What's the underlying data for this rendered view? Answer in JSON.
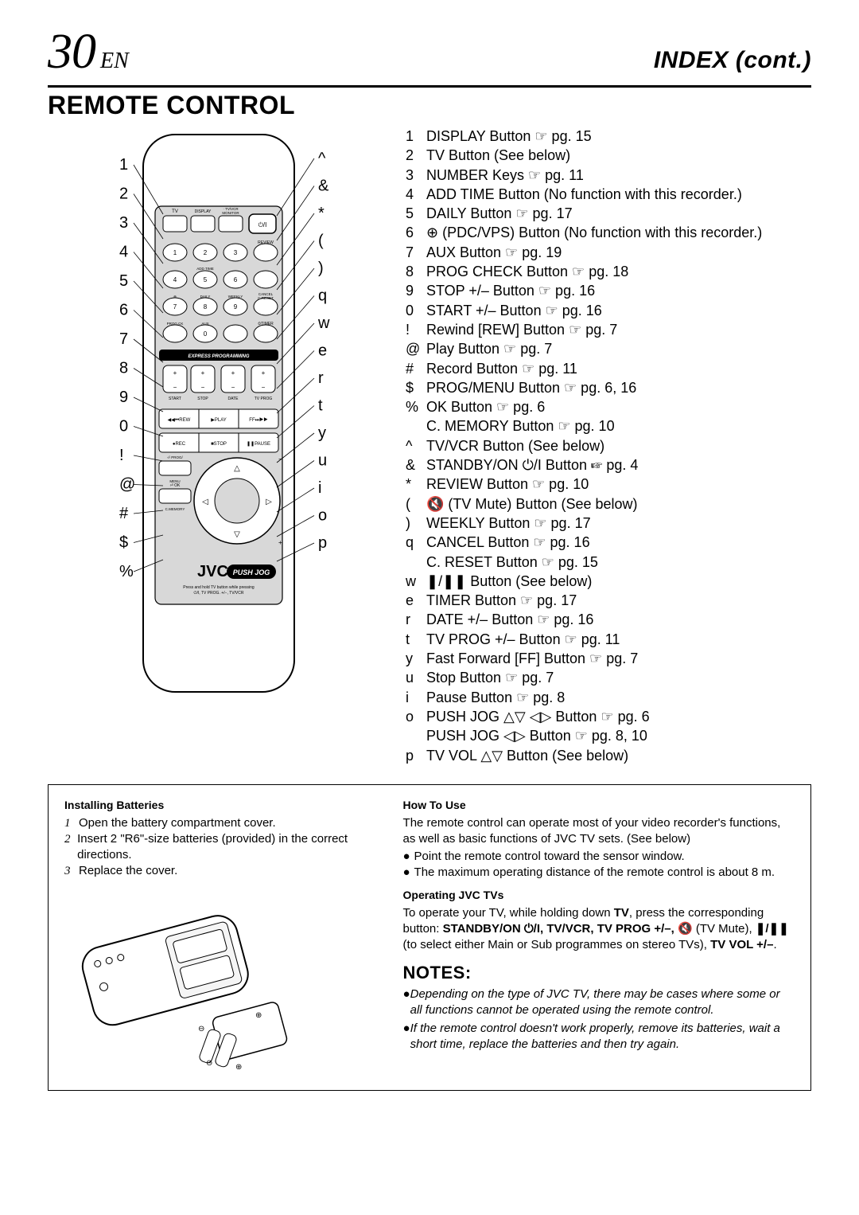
{
  "header": {
    "page_number": "30",
    "lang": "EN",
    "index_title": "INDEX (cont.)"
  },
  "section_title": "REMOTE CONTROL",
  "remote": {
    "left_callouts": [
      "1",
      "2",
      "3",
      "4",
      "5",
      "6",
      "7",
      "8",
      "9",
      "0",
      "!",
      "@",
      "#",
      "$",
      "%"
    ],
    "right_callouts": [
      "^",
      "&",
      "*",
      "(",
      ")",
      "q",
      "w",
      "e",
      "r",
      "t",
      "y",
      "u",
      "i",
      "o",
      "p"
    ],
    "brand": "JVC",
    "push_jog": "PUSH JOG",
    "express": "EXPRESS PROGRAMMING",
    "hint_line1": "Press and hold TV button while pressing",
    "hint_line2": "⏻/I, TV PROG. +/−, TV/VCR",
    "labels": {
      "tv": "TV",
      "display": "DISPLAY",
      "tvvcr": "· TV/VCR\nMONITOR",
      "review": "REVIEW",
      "addtime": "ADD TIME",
      "daily": "DAILY",
      "weekly": "WEEKLY",
      "cancel": "CANCEL\nC.RESET",
      "aux": "AUX",
      "progck": "PROG.CK",
      "timer": "TIMER",
      "start": "START",
      "stop": "STOP",
      "date": "DATE",
      "tvprog": "TV PROG",
      "rew": "◀◀ ⏮ REW",
      "play": "▶ PLAY",
      "ff": "FF ⏭ ▶▶",
      "rec": "● REC",
      "stopb": "■ STOP",
      "pause": "❚❚ PAUSE",
      "progmenu": "⏎ PROG/\nMENU",
      "ok": "⏎ OK",
      "cmem": "C.MEMORY"
    }
  },
  "reference": [
    {
      "sym": "1",
      "txt": "DISPLAY Button ☞ pg. 15"
    },
    {
      "sym": "2",
      "txt": "TV Button (See below)"
    },
    {
      "sym": "3",
      "txt": "NUMBER Keys ☞ pg. 11"
    },
    {
      "sym": "4",
      "txt": "ADD TIME Button (No function with this recorder.)"
    },
    {
      "sym": "5",
      "txt": "DAILY Button ☞ pg. 17"
    },
    {
      "sym": "6",
      "txt": "⊕ (PDC/VPS) Button (No function with this recorder.)"
    },
    {
      "sym": "7",
      "txt": "AUX Button ☞ pg. 19"
    },
    {
      "sym": "8",
      "txt": "PROG CHECK Button ☞ pg. 18"
    },
    {
      "sym": "9",
      "txt": "STOP +/– Button ☞ pg. 16"
    },
    {
      "sym": "0",
      "txt": "START +/– Button ☞ pg. 16"
    },
    {
      "sym": "!",
      "txt": "Rewind [REW] Button ☞ pg. 7"
    },
    {
      "sym": "@",
      "txt": "Play Button ☞ pg. 7"
    },
    {
      "sym": "#",
      "txt": "Record Button ☞ pg. 11"
    },
    {
      "sym": "$",
      "txt": "PROG/MENU Button ☞ pg. 6, 16"
    },
    {
      "sym": "%",
      "txt": "OK Button ☞ pg. 6"
    },
    {
      "sym": "",
      "txt": "C. MEMORY Button ☞ pg. 10"
    },
    {
      "sym": "^",
      "txt": "TV/VCR Button (See below)"
    },
    {
      "sym": "&",
      "txt": "STANDBY/ON ⏻/I Button ☞ pg. 4"
    },
    {
      "sym": "*",
      "txt": "REVIEW Button ☞ pg. 10"
    },
    {
      "sym": "(",
      "txt": "🔇 (TV Mute) Button (See below)"
    },
    {
      "sym": ")",
      "txt": "WEEKLY Button ☞ pg. 17"
    },
    {
      "sym": "q",
      "txt": "CANCEL Button ☞ pg. 16"
    },
    {
      "sym": "",
      "txt": "C. RESET Button ☞ pg. 15"
    },
    {
      "sym": "w",
      "txt": "❚/❚❚ Button (See below)"
    },
    {
      "sym": "e",
      "txt": "TIMER Button ☞ pg. 17"
    },
    {
      "sym": "r",
      "txt": "DATE +/– Button ☞ pg. 16"
    },
    {
      "sym": "t",
      "txt": "TV PROG +/– Button ☞ pg. 11"
    },
    {
      "sym": "y",
      "txt": "Fast Forward [FF] Button ☞ pg. 7"
    },
    {
      "sym": "u",
      "txt": "Stop Button ☞ pg. 7"
    },
    {
      "sym": "i",
      "txt": "Pause Button ☞ pg. 8"
    },
    {
      "sym": "o",
      "txt": "PUSH JOG △▽ ◁▷ Button ☞ pg. 6"
    },
    {
      "sym": "",
      "txt": "PUSH JOG ◁▷ Button ☞ pg. 8, 10"
    },
    {
      "sym": "p",
      "txt": "TV VOL △▽ Button (See below)"
    }
  ],
  "installing": {
    "title": "Installing Batteries",
    "steps": [
      "Open the battery compartment cover.",
      "Insert 2 \"R6\"-size batteries (provided) in the correct directions.",
      "Replace the cover."
    ]
  },
  "howto": {
    "title": "How To Use",
    "intro": "The remote control can operate most of your video recorder's functions, as well as basic functions of JVC TV sets. (See below)",
    "bullets": [
      "Point the remote control toward the sensor window.",
      "The maximum operating distance of the remote control is about 8 m."
    ]
  },
  "operating": {
    "title": "Operating JVC TVs",
    "text_parts": [
      "To operate your TV, while holding down ",
      "TV",
      ", press the corresponding button: ",
      "STANDBY/ON ⏻/I, TV/VCR, TV PROG +/–, 🔇",
      " (TV Mute), ",
      "❚/❚❚",
      " (to select either Main or Sub programmes on stereo TVs), ",
      "TV VOL +/–",
      "."
    ]
  },
  "notes": {
    "title": "NOTES:",
    "items": [
      {
        "italic": true,
        "text": "Depending on the type of JVC TV, there may be cases where some or all functions cannot be operated using the remote control."
      },
      {
        "italic": true,
        "text": "If the remote control doesn't work properly, remove its batteries, wait a short time, replace the batteries and then try again."
      }
    ]
  },
  "style": {
    "stroke": "#000000",
    "fill_grey": "#d0d0d0",
    "fill_light": "#f0f0f0"
  }
}
